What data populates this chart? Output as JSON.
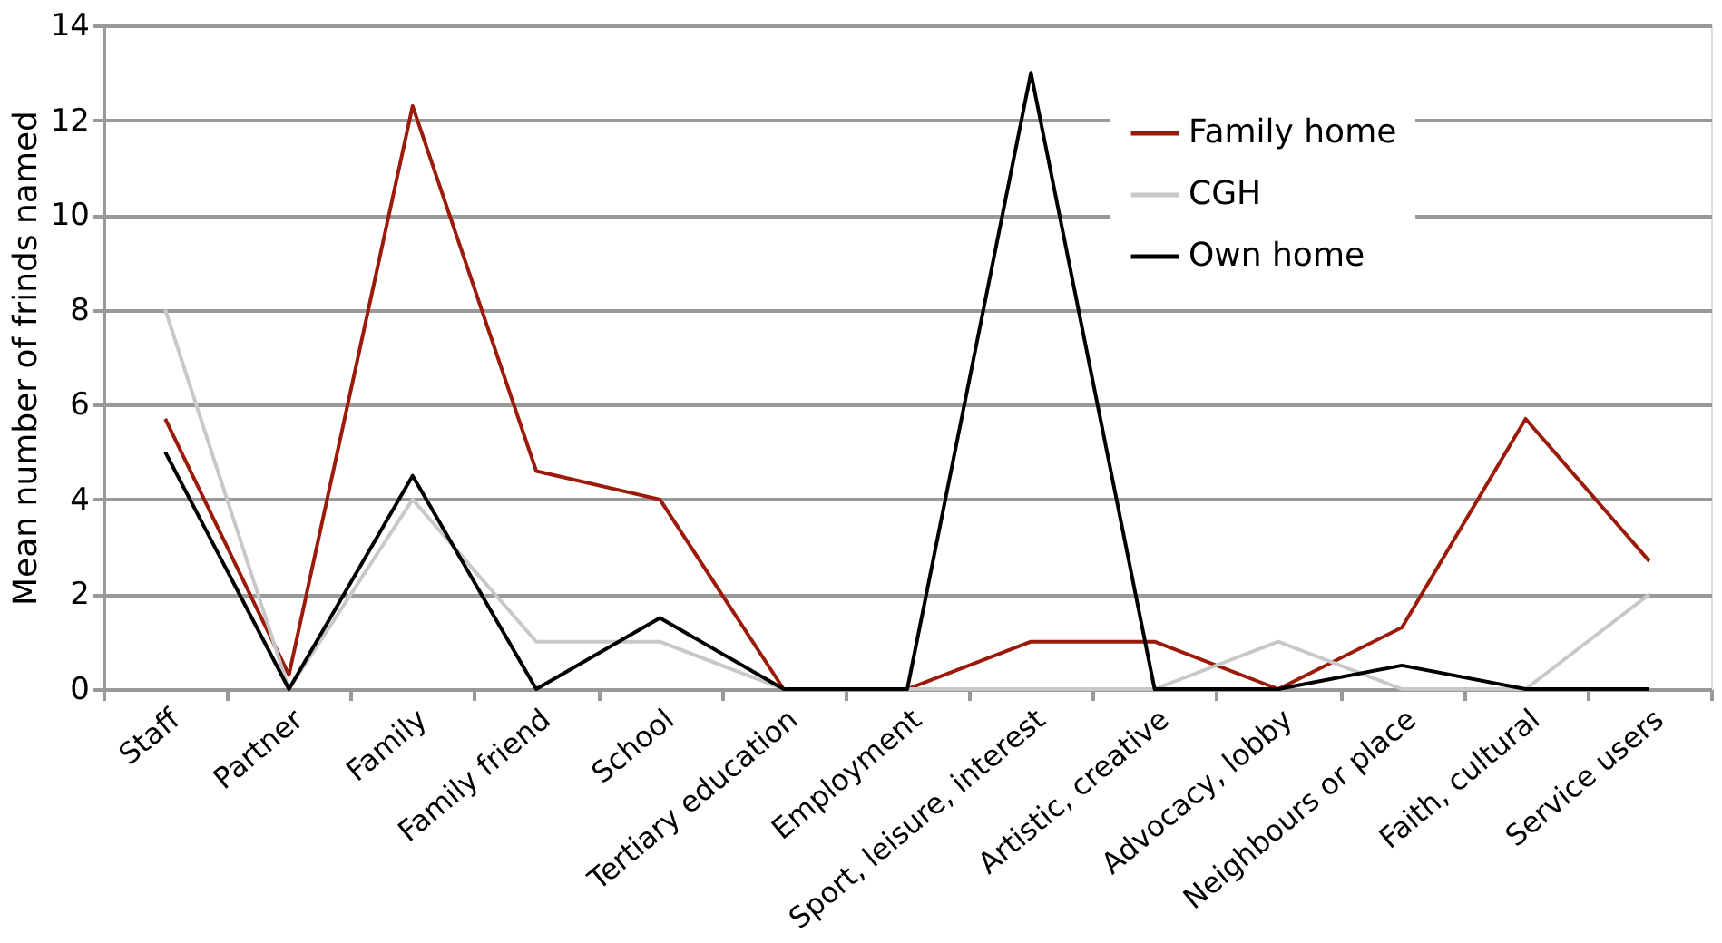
{
  "chart_data": {
    "type": "line",
    "ylabel": "Mean number of frinds named",
    "categories": [
      "Staff",
      "Partner",
      "Family",
      "Family friend",
      "School",
      "Tertiary education",
      "Employment",
      "Sport, leisure, interest",
      "Artistic, creative",
      "Advocacy, lobby",
      "Neighbours or place",
      "Faith, cultural",
      "Service users"
    ],
    "series": [
      {
        "name": "Family home",
        "color": "#9b1a0a",
        "values": [
          5.7,
          0.3,
          12.3,
          4.6,
          4.0,
          0,
          0,
          1.0,
          1.0,
          0,
          1.3,
          5.7,
          2.7
        ]
      },
      {
        "name": "CGH",
        "color": "#c8c8c8",
        "values": [
          8,
          0,
          4,
          1,
          1,
          0,
          0,
          0,
          0,
          1,
          0,
          0,
          2
        ]
      },
      {
        "name": "Own home",
        "color": "#000000",
        "values": [
          5,
          0,
          4.5,
          0,
          1.5,
          0,
          0,
          13,
          0,
          0,
          0.5,
          0,
          0
        ]
      }
    ],
    "ylim": [
      0,
      14
    ],
    "yticks": [
      0,
      2,
      4,
      6,
      8,
      10,
      12,
      14
    ],
    "grid": "y",
    "legend": "top right",
    "marker": "none",
    "line_style": "solid"
  }
}
